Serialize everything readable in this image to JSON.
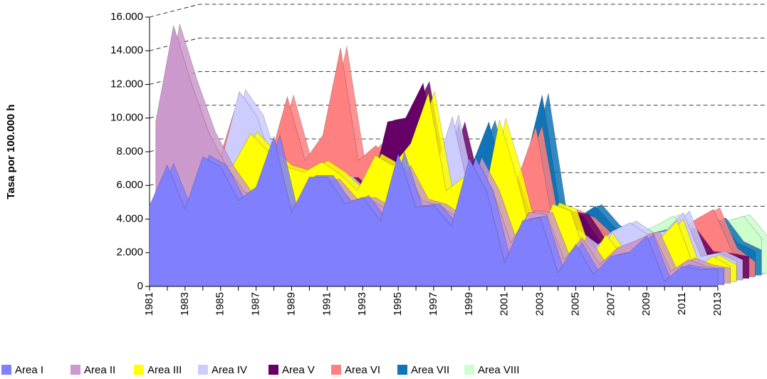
{
  "chart_data": {
    "type": "area3d",
    "y_axis_label": "Tasa por 100.000 h",
    "categories": [
      "1981",
      null,
      "1983",
      null,
      "1985",
      null,
      "1987",
      null,
      "1989",
      null,
      "1991",
      null,
      "1993",
      null,
      "1995",
      null,
      "1997",
      null,
      "1999",
      null,
      "2001",
      null,
      "2003",
      null,
      "2005",
      null,
      "2007",
      null,
      "2009",
      null,
      "2011",
      null,
      "2013"
    ],
    "ylim": [
      0,
      16000
    ],
    "yticks": [
      0,
      {
        "value": 2000,
        "label": "2.000"
      },
      {
        "value": 4000,
        "label": "4.000"
      },
      {
        "value": 6000,
        "label": "6.000"
      },
      {
        "value": 8000,
        "label": "8.000"
      },
      {
        "value": 10000,
        "label": "10.000"
      },
      {
        "value": 12000,
        "label": "12.000"
      },
      {
        "value": 14000,
        "label": "14.000"
      },
      {
        "value": 16000,
        "label": "16.000"
      }
    ],
    "grid": true,
    "legend": "bottom",
    "series": [
      {
        "name": "Area I",
        "color": "#8080ff",
        "values": [
          4800,
          7200,
          4600,
          7700,
          7100,
          5100,
          5900,
          8900,
          4400,
          6500,
          6500,
          4900,
          5300,
          3900,
          7900,
          4700,
          4800,
          3600,
          7600,
          5600,
          1400,
          3900,
          4100,
          800,
          2500,
          700,
          1800,
          2000,
          3000,
          300,
          1200,
          1000,
          1000
        ]
      },
      {
        "name": "Area II",
        "color": "#cc99cc",
        "values": [
          9700,
          15400,
          12000,
          9000,
          7000,
          5500,
          5200,
          4800,
          4500,
          6000,
          6200,
          5000,
          5100,
          4500,
          7000,
          5000,
          4700,
          4000,
          7500,
          5500,
          2500,
          4300,
          4200,
          1500,
          2800,
          1200,
          2200,
          2600,
          3100,
          800,
          1500,
          1100,
          900
        ]
      },
      {
        "name": "Area III",
        "color": "#ffff00",
        "values": [
          5000,
          6000,
          5500,
          6800,
          7000,
          8900,
          7800,
          6900,
          6600,
          7200,
          6500,
          5500,
          7600,
          7000,
          8300,
          11300,
          5500,
          6300,
          4300,
          9700,
          6200,
          2000,
          4700,
          4300,
          1200,
          2900,
          1500,
          2100,
          2600,
          3700,
          800,
          1600,
          1000
        ]
      },
      {
        "name": "Area IV",
        "color": "#ccccff",
        "values": [
          5500,
          7000,
          6000,
          7200,
          11300,
          9800,
          6500,
          6000,
          5500,
          6000,
          6200,
          5200,
          6000,
          5500,
          7000,
          6500,
          9800,
          5000,
          4000,
          6000,
          3000,
          2500,
          3500,
          2800,
          2000,
          3000,
          3500,
          2800,
          3000,
          4100,
          1500,
          1700,
          1200
        ]
      },
      {
        "name": "Area V",
        "color": "#660066",
        "values": [
          5000,
          5500,
          5000,
          6000,
          6500,
          6000,
          6000,
          5500,
          5000,
          6000,
          6000,
          5000,
          9400,
          9600,
          11700,
          6000,
          9300,
          5000,
          4500,
          6000,
          3000,
          2500,
          4000,
          3800,
          2200,
          2500,
          2800,
          2200,
          2800,
          3000,
          1600,
          1500,
          1300
        ]
      },
      {
        "name": "Area VI",
        "color": "#ff8080",
        "values": [
          6000,
          7000,
          6500,
          9900,
          7500,
          7000,
          10800,
          7000,
          8500,
          13700,
          7000,
          7900,
          6000,
          6500,
          7000,
          6000,
          6000,
          5500,
          5000,
          6000,
          9000,
          3000,
          4000,
          3500,
          2500,
          2700,
          2500,
          2300,
          2700,
          3500,
          4100,
          1700,
          900
        ]
      },
      {
        "name": "Area VII",
        "color": "#0f75b8",
        "values": [
          5500,
          6000,
          5500,
          6500,
          7000,
          6500,
          7000,
          6500,
          6000,
          7000,
          6500,
          6000,
          6500,
          6000,
          7000,
          7000,
          6500,
          9200,
          5000,
          6500,
          10800,
          4000,
          3500,
          4200,
          3000,
          2200,
          2500,
          2800,
          2600,
          3000,
          3400,
          2000,
          1500
        ]
      },
      {
        "name": "Area VIII",
        "color": "#ccffcc",
        "values": [
          5000,
          5500,
          5000,
          6000,
          6500,
          6000,
          6000,
          6000,
          5500,
          6000,
          6000,
          5500,
          6000,
          5500,
          6000,
          6000,
          6000,
          5500,
          5000,
          6000,
          5000,
          3500,
          3500,
          3000,
          2500,
          2500,
          2900,
          3500,
          2800,
          2800,
          3200,
          3500,
          2200
        ]
      }
    ]
  }
}
